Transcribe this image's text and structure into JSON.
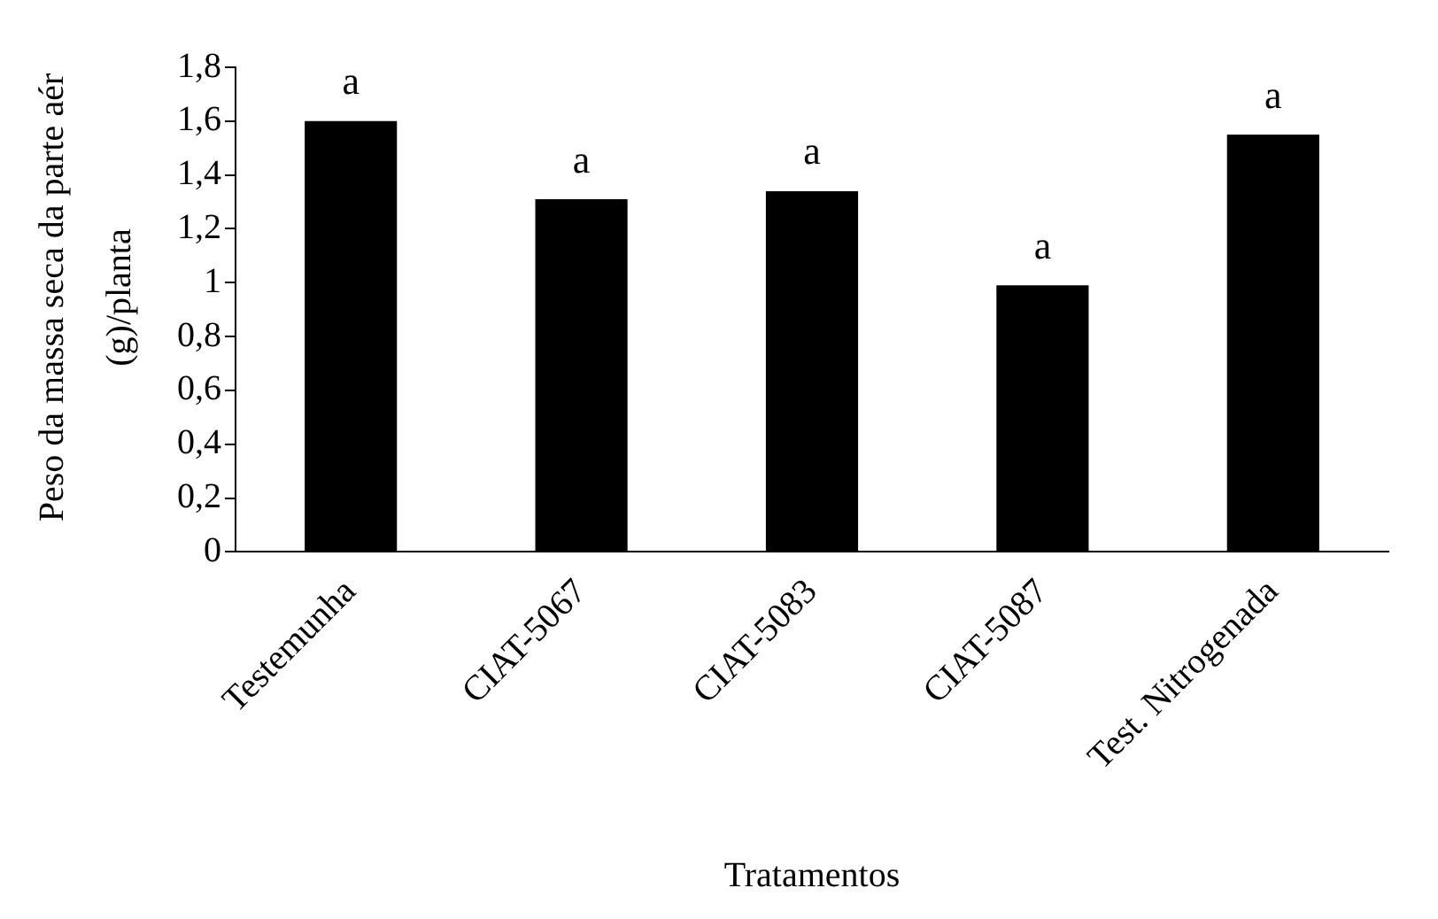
{
  "chart_data": {
    "type": "bar",
    "xlabel": "Tratamentos",
    "ylabel": "Peso da massa seca da parte aér (g)/planta",
    "categories": [
      "Testemunha",
      "CIAT-5067",
      "CIAT-5083",
      "CIAT-5087",
      "Test. Nitrogenada"
    ],
    "values": [
      1.6,
      1.31,
      1.34,
      0.99,
      1.55
    ],
    "color": "#000000",
    "ylim": [
      0,
      1.8
    ],
    "yticks": [
      {
        "value": 0,
        "label": "0"
      },
      {
        "value": 0.2,
        "label": "0,2"
      },
      {
        "value": 0.4,
        "label": "0,4"
      },
      {
        "value": 0.6,
        "label": "0,6"
      },
      {
        "value": 0.8,
        "label": "0,8"
      },
      {
        "value": 1,
        "label": "1"
      },
      {
        "value": 1.2,
        "label": "1,2"
      },
      {
        "value": 1.4,
        "label": "1,4"
      },
      {
        "value": 1.6,
        "label": "1,6"
      },
      {
        "value": 1.8,
        "label": "1,8"
      }
    ],
    "grid": false,
    "legend": false,
    "annotations": [
      {
        "text": "a",
        "x": "Testemunha",
        "y": 1.6
      },
      {
        "text": "a",
        "x": "CIAT-5067",
        "y": 1.31
      },
      {
        "text": "a",
        "x": "CIAT-5083",
        "y": 1.34
      },
      {
        "text": "a",
        "x": "CIAT-5087",
        "y": 0.99
      },
      {
        "text": "a",
        "x": "Test. Nitrogenada",
        "y": 1.55
      }
    ]
  }
}
